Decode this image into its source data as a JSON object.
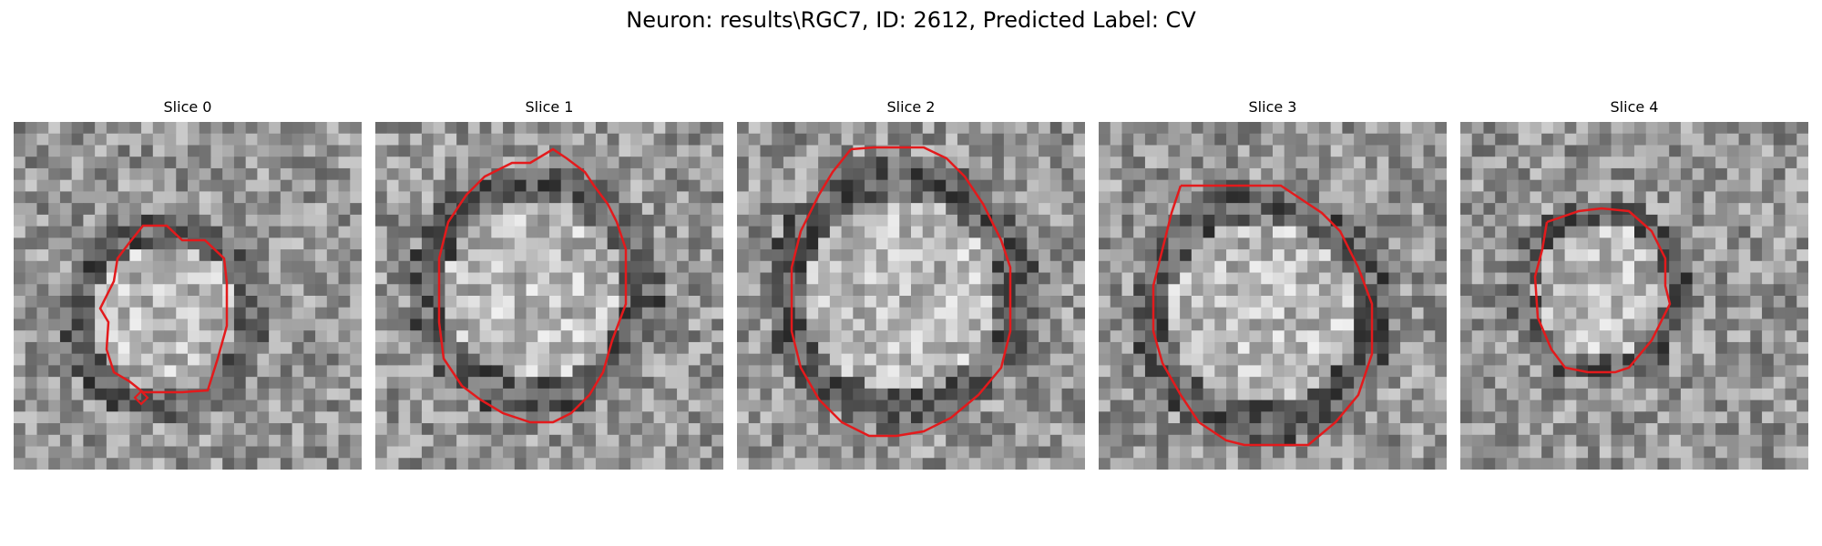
{
  "suptitle": "Neuron: results\\RGC7, ID: 2612, Predicted Label: CV",
  "contour_color": "#e31a1c",
  "colormap": "gray",
  "slices": [
    {
      "title": "Slice 0"
    },
    {
      "title": "Slice 1"
    },
    {
      "title": "Slice 2"
    },
    {
      "title": "Slice 3"
    },
    {
      "title": "Slice 4"
    }
  ]
}
